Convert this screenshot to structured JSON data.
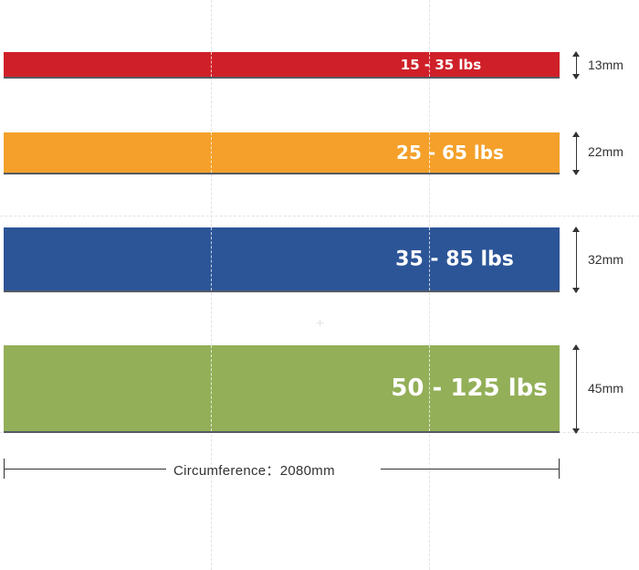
{
  "bands": [
    {
      "label": "15 - 35 lbs",
      "width_label": "13mm",
      "color": "#cf2029"
    },
    {
      "label": "25 - 65 lbs",
      "width_label": "22mm",
      "color": "#f4a02a"
    },
    {
      "label": "35 - 85 lbs",
      "width_label": "32mm",
      "color": "#2c5597"
    },
    {
      "label": "50 - 125 lbs",
      "width_label": "45mm",
      "color": "#93af58"
    }
  ],
  "circumference": {
    "label": "Circumference：2080mm"
  }
}
